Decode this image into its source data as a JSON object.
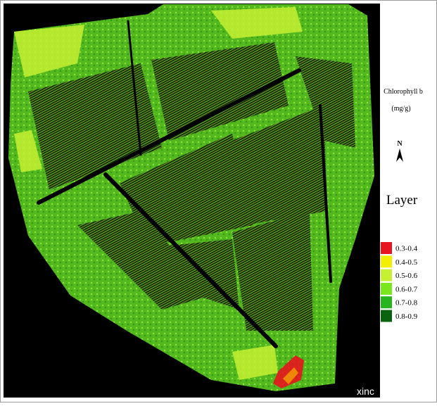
{
  "legend": {
    "title": "Chlorophyll b",
    "unit": "(mg/g)",
    "north": "N",
    "layer_title": "Layer",
    "items": [
      {
        "label": "0.3-0.4",
        "color": "#e8141e"
      },
      {
        "label": "0.4-0.5",
        "color": "#f2f000"
      },
      {
        "label": "0.5-0.6",
        "color": "#c6f032"
      },
      {
        "label": "0.6-0.7",
        "color": "#7ae61e"
      },
      {
        "label": "0.7-0.8",
        "color": "#28b41e"
      },
      {
        "label": "0.8-0.9",
        "color": "#0a640f"
      }
    ]
  },
  "watermark": "xinc"
}
